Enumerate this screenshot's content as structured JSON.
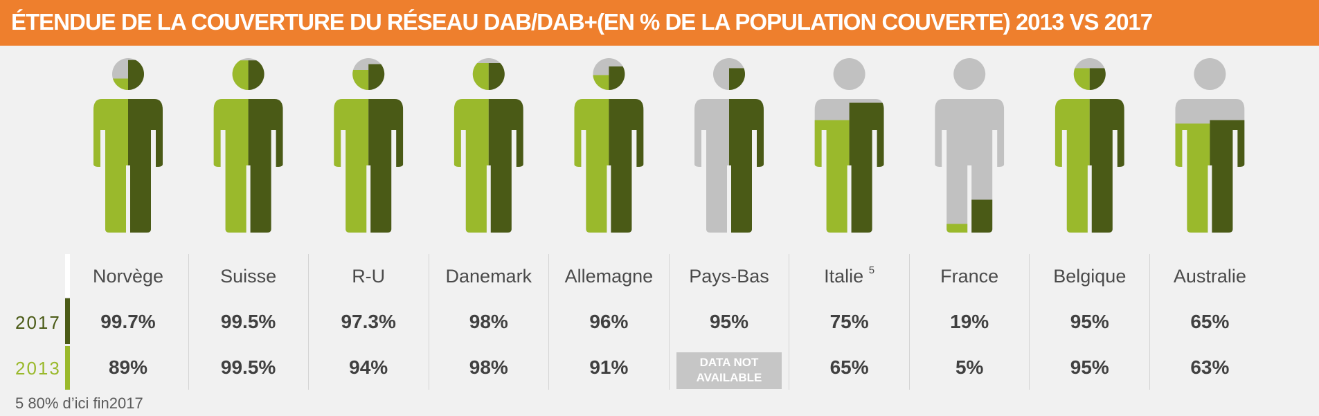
{
  "header": {
    "title": "ÉTENDUE DE LA COUVERTURE DU RÉSEAU DAB/DAB+(EN % DE LA POPULATION COUVERTE) 2013 VS 2017"
  },
  "colors": {
    "header_orange": "#ee7f2d",
    "color_2013": "#9ab92c",
    "color_2017": "#4a5a16",
    "uncovered_grey": "#c1c1c1",
    "na_grey": "#c6c6c6"
  },
  "years": {
    "y2017": "2017",
    "y2013": "2013"
  },
  "footnote": "5 80% d’ici fin2017",
  "chart_data": {
    "type": "pictogram",
    "title": "ÉTENDUE DE LA COUVERTURE DU RÉSEAU DAB/DAB+(EN % DE LA POPULATION COUVERTE) 2013 VS 2017",
    "categories": [
      "Norvège",
      "Suisse",
      "R-U",
      "Danemark",
      "Allemagne",
      "Pays-Bas",
      "Italie",
      "France",
      "Belgique",
      "Australie"
    ],
    "series": [
      {
        "name": "2013",
        "values": [
          89,
          99.5,
          94,
          98,
          91,
          null,
          65,
          5,
          95,
          63
        ]
      },
      {
        "name": "2017",
        "values": [
          99.7,
          99.5,
          97.3,
          98,
          96,
          95,
          75,
          19,
          95,
          65
        ]
      }
    ],
    "countries": [
      {
        "name": "Norvège",
        "sup": "",
        "v2017": "99.7%",
        "v2013": "89%"
      },
      {
        "name": "Suisse",
        "sup": "",
        "v2017": "99.5%",
        "v2013": "99.5%"
      },
      {
        "name": "R-U",
        "sup": "",
        "v2017": "97.3%",
        "v2013": "94%"
      },
      {
        "name": "Danemark",
        "sup": "",
        "v2017": "98%",
        "v2013": "98%"
      },
      {
        "name": "Allemagne",
        "sup": "",
        "v2017": "96%",
        "v2013": "91%"
      },
      {
        "name": "Pays-Bas",
        "sup": "",
        "v2017": "95%",
        "v2013": null,
        "na_label": [
          "DATA NOT",
          "AVAILABLE"
        ]
      },
      {
        "name": "Italie",
        "sup": "5",
        "v2017": "75%",
        "v2013": "65%"
      },
      {
        "name": "France",
        "sup": "",
        "v2017": "19%",
        "v2013": "5%"
      },
      {
        "name": "Belgique",
        "sup": "",
        "v2017": "95%",
        "v2013": "95%"
      },
      {
        "name": "Australie",
        "sup": "",
        "v2017": "65%",
        "v2013": "63%"
      }
    ]
  }
}
